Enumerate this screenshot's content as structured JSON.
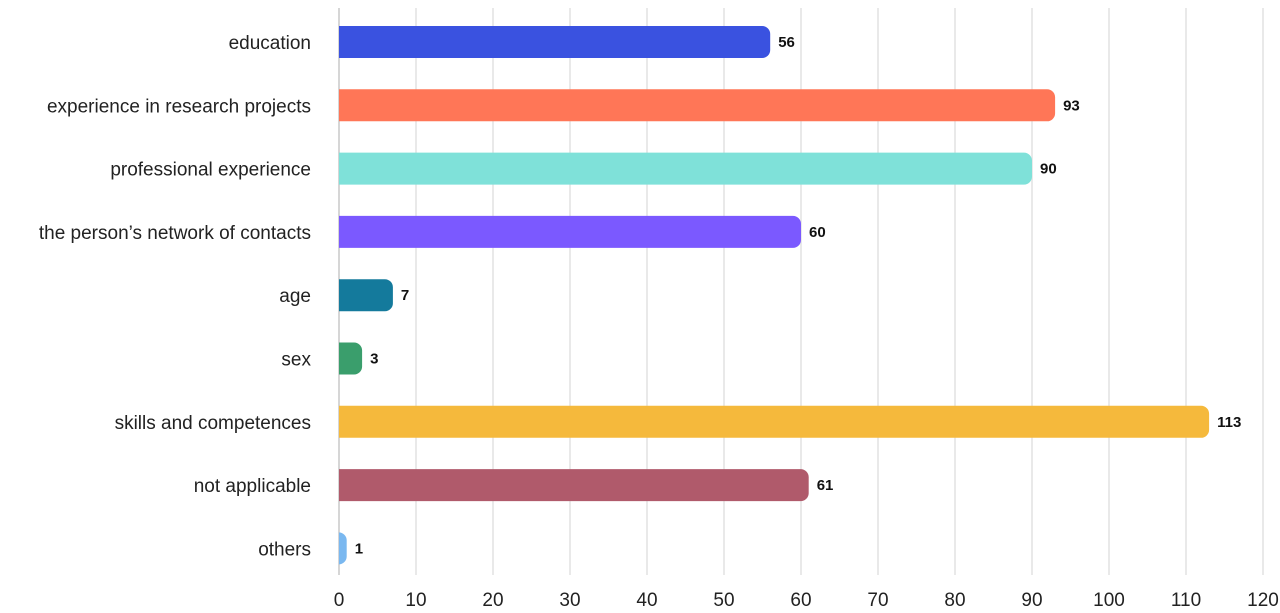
{
  "chart_data": {
    "type": "bar",
    "orientation": "horizontal",
    "title": "",
    "xlabel": "",
    "ylabel": "",
    "categories": [
      "education",
      "experience in research projects",
      "professional experience",
      "the person’s network of contacts",
      "age",
      "sex",
      "skills and competences",
      "not applicable",
      "others"
    ],
    "values": [
      56,
      93,
      90,
      60,
      7,
      3,
      113,
      61,
      1
    ],
    "colors": [
      "#3a52e0",
      "#ff7657",
      "#7fe1d9",
      "#7b59ff",
      "#147a9c",
      "#3a9e6c",
      "#f5b93c",
      "#b05a6b",
      "#7ab8f0"
    ],
    "xlim": [
      0,
      120
    ],
    "xticks": [
      0,
      10,
      20,
      30,
      40,
      50,
      60,
      70,
      80,
      90,
      100,
      110,
      120
    ],
    "grid": true,
    "legend": "none"
  }
}
